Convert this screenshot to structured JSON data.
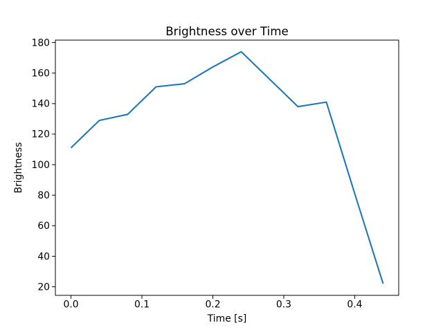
{
  "figure": {
    "background": "#ffffff",
    "spine_color": "#000000",
    "tick_color": "#000000",
    "text_color": "#000000"
  },
  "chart_data": {
    "type": "line",
    "title": "Brightness over Time",
    "xlabel": "Time [s]",
    "ylabel": "Brightness",
    "x": [
      0.0,
      0.04,
      0.08,
      0.12,
      0.16,
      0.2,
      0.24,
      0.28,
      0.32,
      0.36,
      0.4,
      0.44
    ],
    "y": [
      111,
      129,
      133,
      151,
      153,
      164,
      174,
      156,
      138,
      141,
      81,
      22
    ],
    "series_color": "#1f77b4",
    "line_width": 2.1,
    "markers": false,
    "grid": false,
    "legend": null,
    "xlim": [
      -0.022,
      0.462
    ],
    "ylim": [
      14.4,
      181.6
    ],
    "xticks": [
      0.0,
      0.1,
      0.2,
      0.3,
      0.4
    ],
    "xtick_labels": [
      "0.0",
      "0.1",
      "0.2",
      "0.3",
      "0.4"
    ],
    "yticks": [
      20,
      40,
      60,
      80,
      100,
      120,
      140,
      160,
      180
    ],
    "ytick_labels": [
      "20",
      "40",
      "60",
      "80",
      "100",
      "120",
      "140",
      "160",
      "180"
    ]
  }
}
